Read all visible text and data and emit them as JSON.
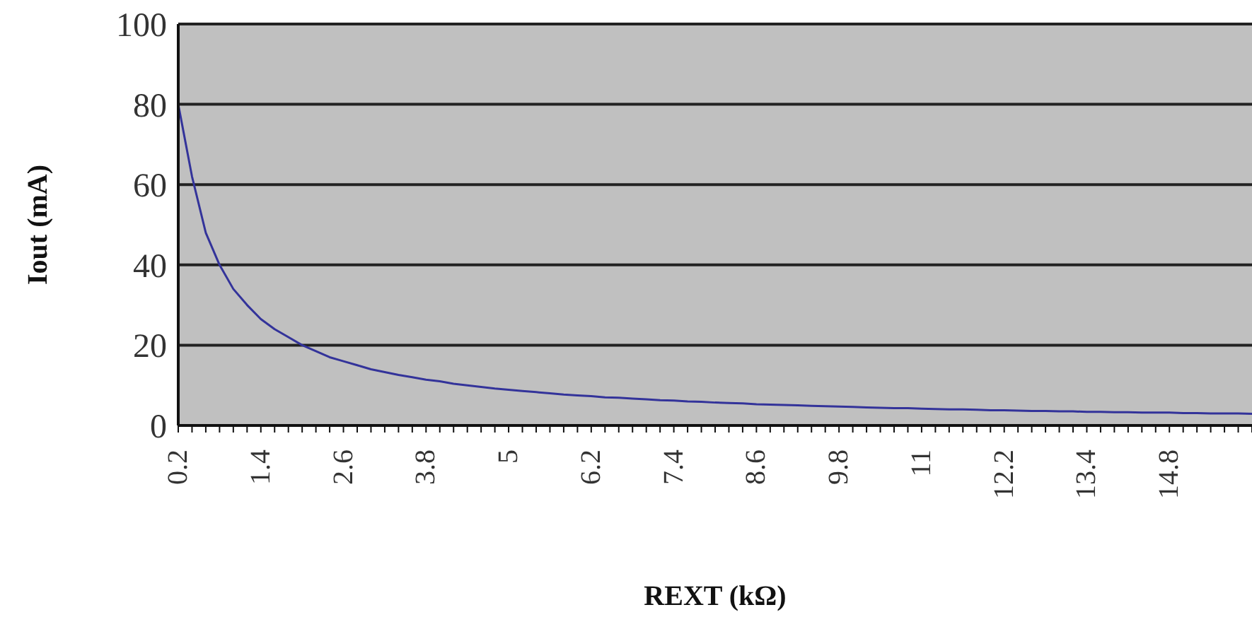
{
  "chart_data": {
    "type": "line",
    "xlabel": "REXT (kΩ)",
    "ylabel": "Iout (mA)",
    "categories": [
      "0.2",
      null,
      null,
      null,
      null,
      null,
      "1.4",
      null,
      null,
      null,
      null,
      null,
      "2.6",
      null,
      null,
      null,
      null,
      null,
      "3.8",
      null,
      null,
      null,
      null,
      null,
      "5",
      null,
      null,
      null,
      null,
      null,
      "6.2",
      null,
      null,
      null,
      null,
      null,
      "7.4",
      null,
      null,
      null,
      null,
      null,
      "8.6",
      null,
      null,
      null,
      null,
      null,
      "9.8",
      null,
      null,
      null,
      null,
      null,
      "11",
      null,
      null,
      null,
      null,
      null,
      "12.2",
      null,
      null,
      null,
      null,
      null,
      "13.4",
      null,
      null,
      null,
      null,
      null,
      "14.8",
      null,
      null,
      null,
      null,
      null,
      null
    ],
    "series": [
      {
        "color": "#33339a",
        "values": [
          80,
          62,
          48,
          40,
          34,
          30,
          26.5,
          24,
          22,
          20,
          18.5,
          17,
          16,
          15,
          14,
          13.3,
          12.6,
          12,
          11.4,
          11,
          10.4,
          10,
          9.6,
          9.2,
          8.9,
          8.6,
          8.3,
          8,
          7.7,
          7.5,
          7.3,
          7,
          6.9,
          6.7,
          6.5,
          6.3,
          6.2,
          6,
          5.9,
          5.7,
          5.6,
          5.5,
          5.3,
          5.2,
          5.1,
          5,
          4.9,
          4.8,
          4.7,
          4.6,
          4.5,
          4.4,
          4.3,
          4.3,
          4.2,
          4.1,
          4,
          4,
          3.9,
          3.8,
          3.8,
          3.7,
          3.6,
          3.6,
          3.5,
          3.5,
          3.4,
          3.4,
          3.3,
          3.3,
          3.2,
          3.2,
          3.2,
          3.1,
          3.1,
          3,
          3,
          3,
          2.9
        ]
      }
    ],
    "ylim": [
      0,
      100
    ],
    "yticks": [
      0,
      20,
      40,
      60,
      80,
      100
    ],
    "grid": "y",
    "marker": "none",
    "line_style": "solid"
  }
}
